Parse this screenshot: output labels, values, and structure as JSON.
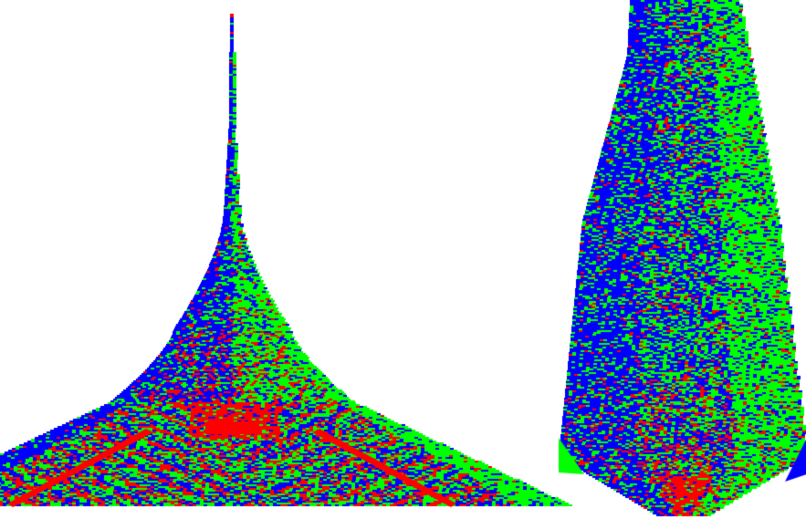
{
  "scene": {
    "background_color": "#ffffff",
    "palette": {
      "red": "#ff0000",
      "green": "#00ff00",
      "blue": "#0000ff"
    },
    "figures": [
      {
        "name": "spire-figure",
        "description_shape": "narrow spike on top of a wide triangular skirt",
        "dominant_colors": [
          "blue",
          "green",
          "red"
        ]
      },
      {
        "name": "teardrop-figure",
        "description_shape": "tall tapering teardrop with flat angled base",
        "dominant_colors": [
          "blue",
          "green",
          "red"
        ]
      }
    ]
  }
}
